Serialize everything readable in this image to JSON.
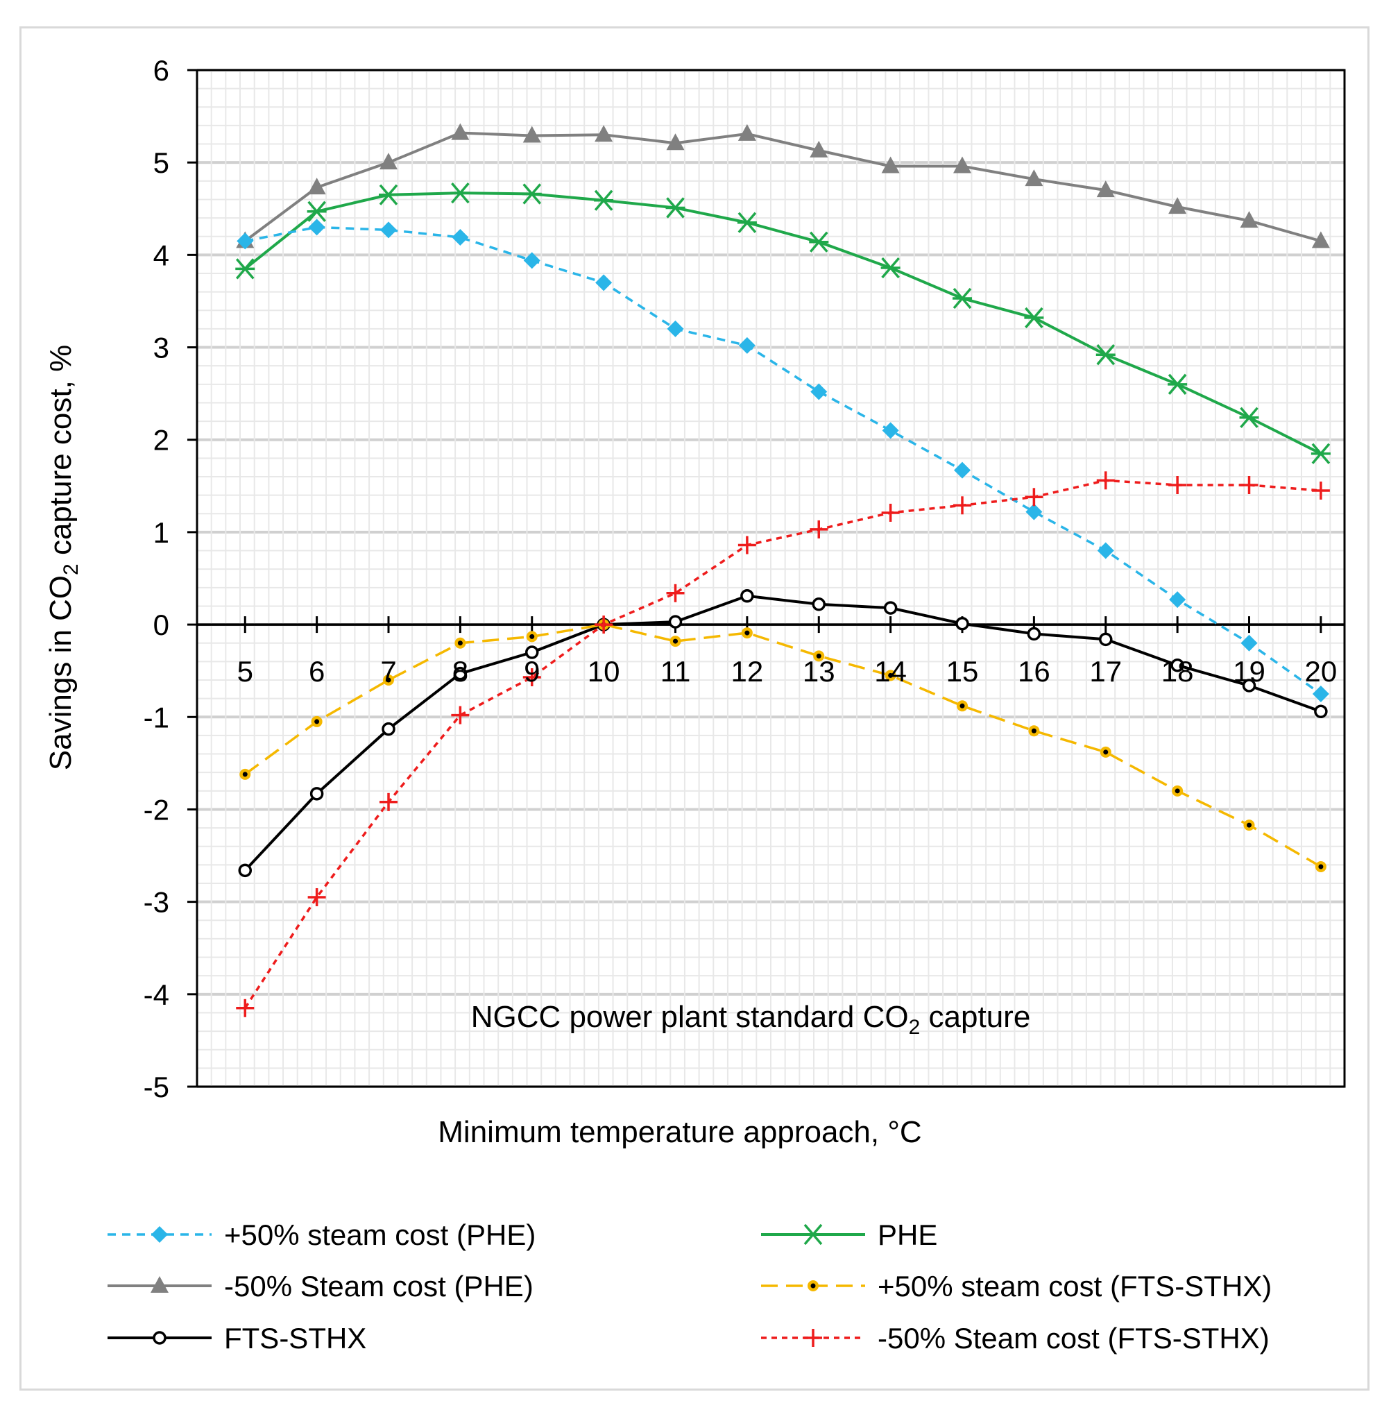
{
  "chart_data": {
    "type": "line",
    "xlabel": "Minimum temperature approach, °C",
    "ylabel_main": "Savings in CO",
    "ylabel_sub": "2",
    "ylabel_tail": " capture cost, %",
    "annotation_main": "NGCC power plant standard CO",
    "annotation_sub": "2",
    "annotation_tail": " capture",
    "x": [
      5,
      6,
      7,
      8,
      9,
      10,
      11,
      12,
      13,
      14,
      15,
      16,
      17,
      18,
      19,
      20
    ],
    "xlim": [
      4.33,
      20.33
    ],
    "ylim": [
      -5,
      6
    ],
    "yticks": [
      -5,
      -4,
      -3,
      -2,
      -1,
      0,
      1,
      2,
      3,
      4,
      5,
      6
    ],
    "ytick_labels": [
      "-5",
      "-4",
      "-3",
      "-2",
      "-1",
      "0",
      "1",
      "2",
      "3",
      "4",
      "5",
      "6"
    ],
    "xtick_labels": [
      "5",
      "6",
      "7",
      "8",
      "9",
      "10",
      "11",
      "12",
      "13",
      "14",
      "15",
      "16",
      "17",
      "18",
      "19",
      "20"
    ],
    "grid": true,
    "legend_position": "bottom",
    "series": [
      {
        "name": "+50% steam cost (PHE)",
        "color": "#2ab5e8",
        "dash": "dashed",
        "marker": "diamond",
        "values": [
          4.15,
          4.3,
          4.27,
          4.19,
          3.94,
          3.7,
          3.2,
          3.02,
          2.52,
          2.1,
          1.67,
          1.22,
          0.8,
          0.27,
          -0.2,
          -0.75
        ]
      },
      {
        "name": "PHE",
        "color": "#1fa84a",
        "dash": "solid",
        "marker": "asterisk",
        "values": [
          3.85,
          4.47,
          4.65,
          4.67,
          4.66,
          4.59,
          4.51,
          4.35,
          4.14,
          3.86,
          3.53,
          3.32,
          2.92,
          2.6,
          2.24,
          1.85
        ]
      },
      {
        "name": "-50% Steam cost (PHE)",
        "color": "#808080",
        "dash": "solid",
        "marker": "triangle",
        "values": [
          4.15,
          4.73,
          5.0,
          5.32,
          5.29,
          5.3,
          5.21,
          5.31,
          5.13,
          4.96,
          4.96,
          4.82,
          4.7,
          4.52,
          4.37,
          4.15
        ]
      },
      {
        "name": "+50% steam cost (FTS-STHX)",
        "color": "#f5b800",
        "dash": "longdash",
        "marker": "dotcircle",
        "values": [
          -1.62,
          -1.05,
          -0.6,
          -0.2,
          -0.13,
          0.0,
          -0.18,
          -0.09,
          -0.34,
          -0.55,
          -0.88,
          -1.15,
          -1.38,
          -1.8,
          -2.17,
          -2.62
        ]
      },
      {
        "name": "FTS-STHX",
        "color": "#000000",
        "dash": "solid",
        "marker": "circle",
        "values": [
          -2.66,
          -1.83,
          -1.13,
          -0.53,
          -0.3,
          0.0,
          0.03,
          0.31,
          0.22,
          0.18,
          0.01,
          -0.1,
          -0.16,
          -0.44,
          -0.66,
          -0.94
        ]
      },
      {
        "name": "-50% Steam cost (FTS-STHX)",
        "color": "#ee1c1c",
        "dash": "shortdash",
        "marker": "plus",
        "values": [
          -4.15,
          -2.95,
          -1.92,
          -0.98,
          -0.57,
          0.0,
          0.34,
          0.86,
          1.03,
          1.21,
          1.29,
          1.38,
          1.56,
          1.51,
          1.51,
          1.45
        ]
      }
    ]
  }
}
